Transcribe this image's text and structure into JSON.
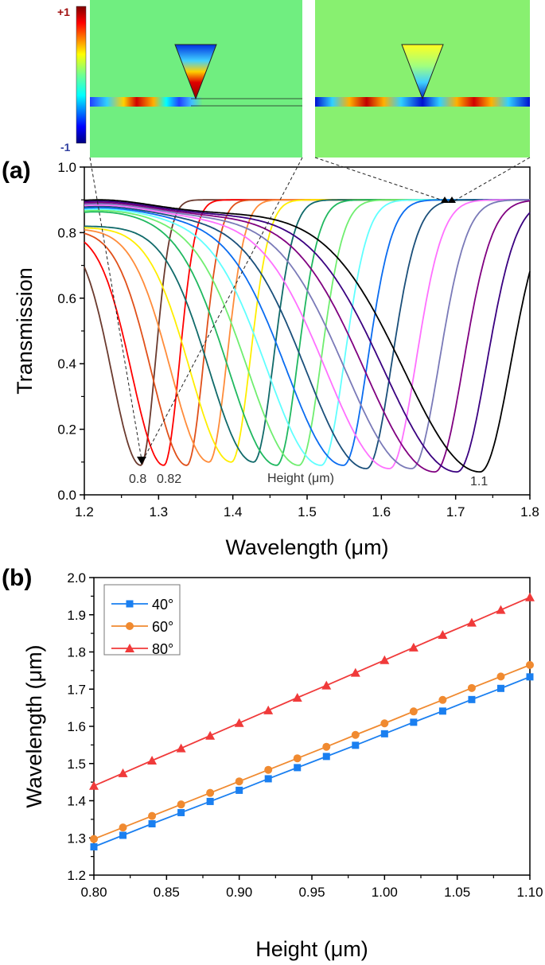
{
  "colorbar": {
    "max_label": "+1",
    "min_label": "-1"
  },
  "chart_data": [
    {
      "panel_label": "(a)",
      "type": "line",
      "xlabel": "Wavelength (μm)",
      "ylabel": "Transmission",
      "xlim": [
        1.2,
        1.8
      ],
      "ylim": [
        0.0,
        1.0
      ],
      "xticks": [
        "1.2",
        "1.3",
        "1.4",
        "1.5",
        "1.6",
        "1.7",
        "1.8"
      ],
      "yticks": [
        "0.0",
        "0.2",
        "0.4",
        "0.6",
        "0.8",
        "1.0"
      ],
      "annotations": {
        "first": "0.8",
        "second": "0.82",
        "title": "Height (μm)",
        "last": "1.1"
      },
      "series": [
        {
          "height": 0.8,
          "dip_wavelength": 1.276,
          "dip_transmission": 0.09,
          "color": "#6b3a2e"
        },
        {
          "height": 0.82,
          "dip_wavelength": 1.307,
          "dip_transmission": 0.09,
          "color": "#ff0000"
        },
        {
          "height": 0.84,
          "dip_wavelength": 1.338,
          "dip_transmission": 0.09,
          "color": "#e0501a"
        },
        {
          "height": 0.86,
          "dip_wavelength": 1.368,
          "dip_transmission": 0.1,
          "color": "#ff8c3a"
        },
        {
          "height": 0.88,
          "dip_wavelength": 1.398,
          "dip_transmission": 0.1,
          "color": "#ffee00"
        },
        {
          "height": 0.9,
          "dip_wavelength": 1.428,
          "dip_transmission": 0.1,
          "color": "#106a6a"
        },
        {
          "height": 0.92,
          "dip_wavelength": 1.459,
          "dip_transmission": 0.09,
          "color": "#20b860"
        },
        {
          "height": 0.94,
          "dip_wavelength": 1.489,
          "dip_transmission": 0.09,
          "color": "#70ee70"
        },
        {
          "height": 0.96,
          "dip_wavelength": 1.519,
          "dip_transmission": 0.09,
          "color": "#60ffff"
        },
        {
          "height": 0.98,
          "dip_wavelength": 1.549,
          "dip_transmission": 0.09,
          "color": "#0a6cf0"
        },
        {
          "height": 1.0,
          "dip_wavelength": 1.58,
          "dip_transmission": 0.08,
          "color": "#1a4f7a"
        },
        {
          "height": 1.02,
          "dip_wavelength": 1.611,
          "dip_transmission": 0.08,
          "color": "#ff70ff"
        },
        {
          "height": 1.04,
          "dip_wavelength": 1.641,
          "dip_transmission": 0.08,
          "color": "#7a7ab8"
        },
        {
          "height": 1.06,
          "dip_wavelength": 1.672,
          "dip_transmission": 0.07,
          "color": "#800080"
        },
        {
          "height": 1.08,
          "dip_wavelength": 1.702,
          "dip_transmission": 0.07,
          "color": "#3a0080"
        },
        {
          "height": 1.1,
          "dip_wavelength": 1.733,
          "dip_transmission": 0.07,
          "color": "#000000"
        }
      ]
    },
    {
      "panel_label": "(b)",
      "type": "line",
      "xlabel": "Height (μm)",
      "ylabel": "Wavelength (μm)",
      "xlim": [
        0.8,
        1.1
      ],
      "ylim": [
        1.2,
        2.0
      ],
      "xticks": [
        "0.80",
        "0.85",
        "0.90",
        "0.95",
        "1.00",
        "1.05",
        "1.10"
      ],
      "yticks": [
        "1.2",
        "1.3",
        "1.4",
        "1.5",
        "1.6",
        "1.7",
        "1.8",
        "1.9",
        "2.0"
      ],
      "legend_placement": "top-left",
      "x": [
        0.8,
        0.82,
        0.84,
        0.86,
        0.88,
        0.9,
        0.92,
        0.94,
        0.96,
        0.98,
        1.0,
        1.02,
        1.04,
        1.06,
        1.08,
        1.1
      ],
      "series": [
        {
          "name": "40°",
          "marker": "square",
          "color": "#1a7ff0",
          "values": [
            1.276,
            1.307,
            1.338,
            1.368,
            1.398,
            1.428,
            1.459,
            1.489,
            1.519,
            1.549,
            1.58,
            1.611,
            1.641,
            1.672,
            1.702,
            1.733
          ]
        },
        {
          "name": "60°",
          "marker": "circle",
          "color": "#f08a30",
          "values": [
            1.297,
            1.328,
            1.359,
            1.39,
            1.421,
            1.452,
            1.483,
            1.514,
            1.545,
            1.577,
            1.608,
            1.64,
            1.671,
            1.703,
            1.734,
            1.765
          ]
        },
        {
          "name": "80°",
          "marker": "triangle",
          "color": "#f03a3a",
          "values": [
            1.44,
            1.474,
            1.508,
            1.541,
            1.575,
            1.609,
            1.643,
            1.677,
            1.71,
            1.744,
            1.778,
            1.812,
            1.846,
            1.879,
            1.913,
            1.947
          ]
        }
      ]
    }
  ]
}
